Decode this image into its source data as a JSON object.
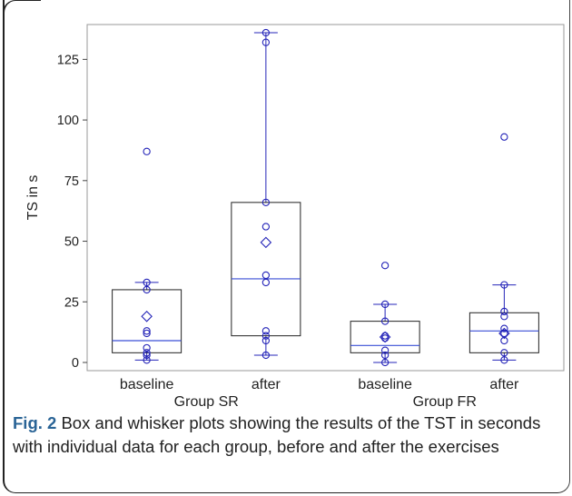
{
  "chart_data": {
    "type": "box",
    "ylabel": "TS in s",
    "yticks": [
      0,
      25,
      50,
      75,
      100,
      125
    ],
    "ylim": [
      0,
      136
    ],
    "grid": false,
    "categories": [
      "baseline",
      "after",
      "baseline",
      "after"
    ],
    "groups": [
      {
        "name": "Group SR",
        "categories": [
          "baseline",
          "after"
        ]
      },
      {
        "name": "Group FR",
        "categories": [
          "baseline",
          "after"
        ]
      }
    ],
    "boxes": [
      {
        "group": "Group SR",
        "category": "baseline",
        "q1": 4,
        "median": 9,
        "q3": 30,
        "whisker_low": 1,
        "whisker_high": 33,
        "mean": 19,
        "points": [
          87,
          33,
          30,
          13,
          12,
          6,
          4,
          3,
          1
        ]
      },
      {
        "group": "Group SR",
        "category": "after",
        "q1": 11,
        "median": 34.5,
        "q3": 66,
        "whisker_low": 3,
        "whisker_high": 136,
        "mean": 49.5,
        "points": [
          136,
          132,
          66,
          56,
          36,
          33,
          13,
          11,
          9,
          3
        ]
      },
      {
        "group": "Group FR",
        "category": "baseline",
        "q1": 4,
        "median": 7,
        "q3": 17,
        "whisker_low": 0,
        "whisker_high": 24,
        "mean": 10.5,
        "points": [
          40,
          24,
          17,
          11,
          10,
          5,
          3,
          0
        ]
      },
      {
        "group": "Group FR",
        "category": "after",
        "q1": 4,
        "median": 13,
        "q3": 20.5,
        "whisker_low": 1,
        "whisker_high": 32,
        "mean": 12,
        "points": [
          93,
          32,
          21,
          19,
          14,
          12,
          9,
          4,
          1
        ]
      }
    ],
    "colors": {
      "points": "#2424b8",
      "box": "#222222",
      "median": "#3a4fd6",
      "whisker": "#2424b8"
    }
  },
  "caption": {
    "label": "Fig. 2",
    "text": "Box and whisker plots showing the results of the TST in seconds with individual data for each group, before and after the exercises"
  }
}
